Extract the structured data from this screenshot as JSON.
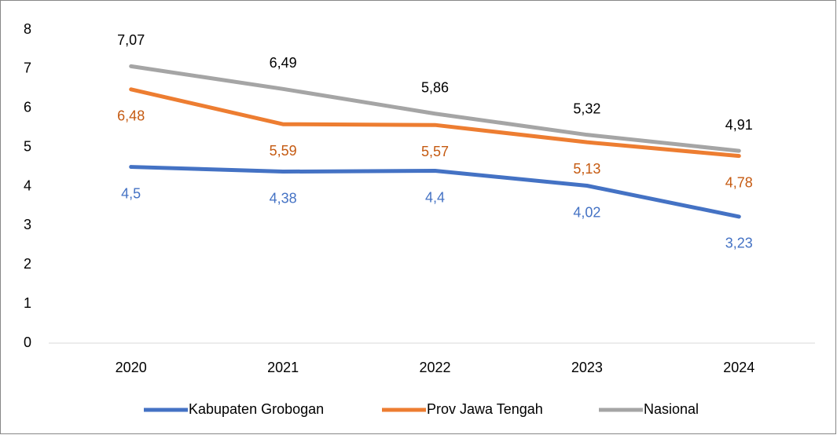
{
  "chart_data": {
    "type": "line",
    "categories": [
      "2020",
      "2021",
      "2022",
      "2023",
      "2024"
    ],
    "series": [
      {
        "name": "Kabupaten Grobogan",
        "color": "#4472c4",
        "label_color": "#4472c4",
        "values": [
          4.5,
          4.38,
          4.4,
          4.02,
          3.23
        ],
        "value_labels": [
          "4,5",
          "4,38",
          "4,4",
          "4,02",
          "3,23"
        ]
      },
      {
        "name": "Prov Jawa Tengah",
        "color": "#ed7d31",
        "label_color": "#c55a11",
        "values": [
          6.48,
          5.59,
          5.57,
          5.13,
          4.78
        ],
        "value_labels": [
          "6,48",
          "5,59",
          "5,57",
          "5,13",
          "4,78"
        ]
      },
      {
        "name": "Nasional",
        "color": "#a5a5a5",
        "label_color": "#000000",
        "values": [
          7.07,
          6.49,
          5.86,
          5.32,
          4.91
        ],
        "value_labels": [
          "7,07",
          "6,49",
          "5,86",
          "5,32",
          "4,91"
        ]
      }
    ],
    "ylim": [
      0,
      8
    ],
    "yticks": [
      0,
      1,
      2,
      3,
      4,
      5,
      6,
      7,
      8
    ],
    "grid": false,
    "legend": "bottom"
  }
}
